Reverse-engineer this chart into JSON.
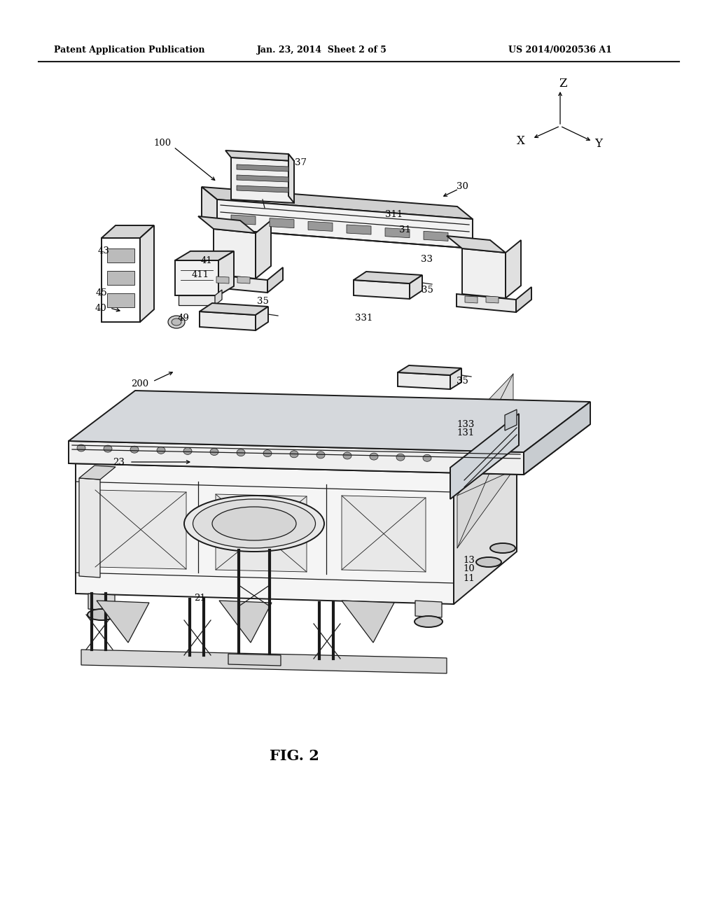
{
  "header_left": "Patent Application Publication",
  "header_mid": "Jan. 23, 2014  Sheet 2 of 5",
  "header_right": "US 2014/0020536 A1",
  "figure_label": "FIG. 2",
  "bg_color": "#ffffff",
  "lc": "#1a1a1a",
  "fig_width": 10.24,
  "fig_height": 13.2,
  "dpi": 100
}
